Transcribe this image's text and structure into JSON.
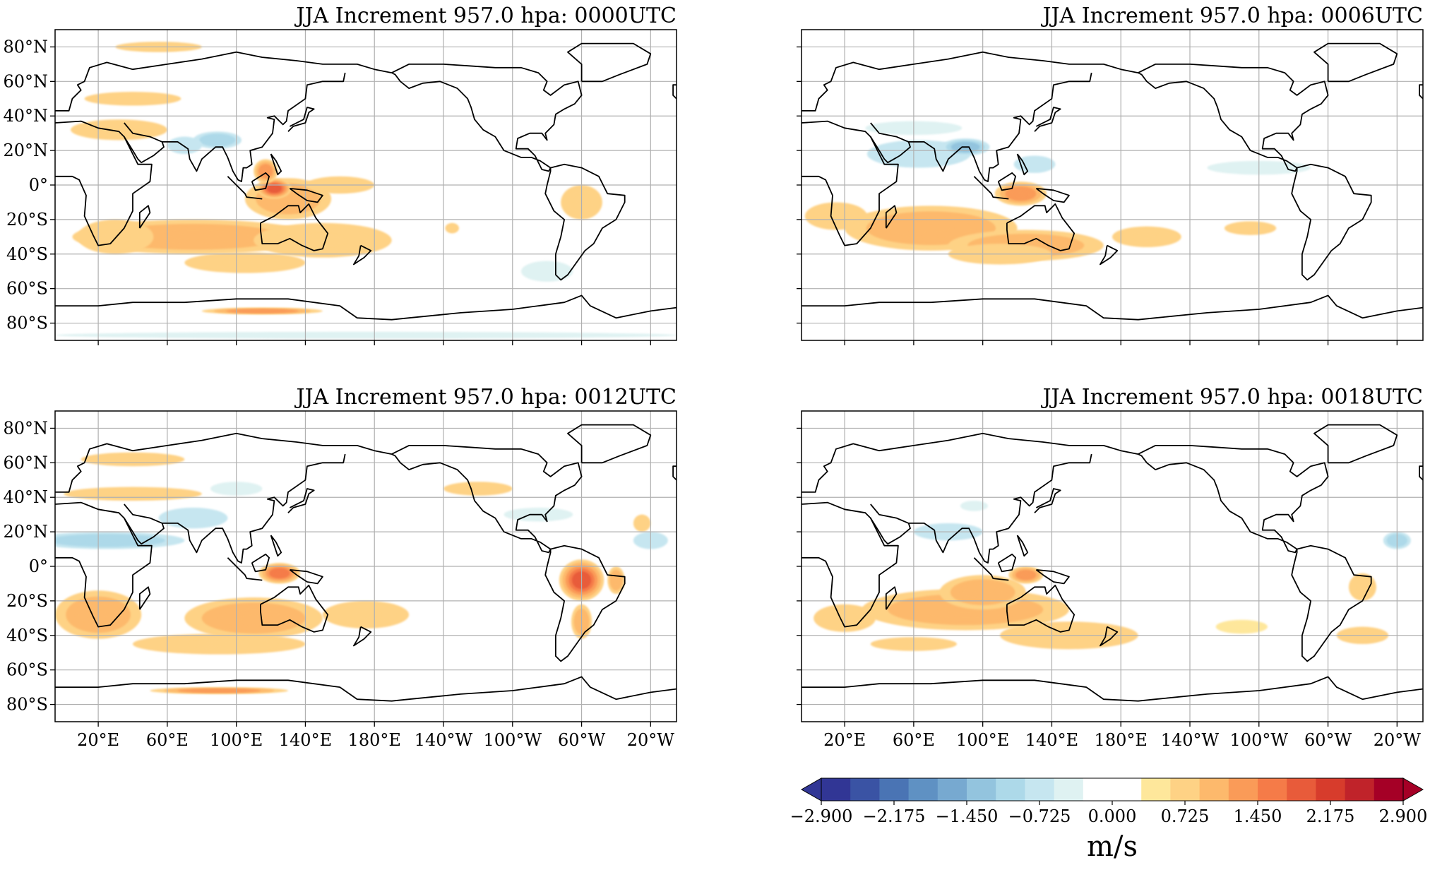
{
  "figure": {
    "panels": [
      {
        "title": "JJA Increment 957.0 hpa: 0000UTC",
        "show_ylabels": true,
        "show_xlabels": false
      },
      {
        "title": "JJA Increment 957.0 hpa: 0006UTC",
        "show_ylabels": false,
        "show_xlabels": false
      },
      {
        "title": "JJA Increment 957.0 hpa: 0012UTC",
        "show_ylabels": true,
        "show_xlabels": true
      },
      {
        "title": "JJA Increment 957.0 hpa: 0018UTC",
        "show_ylabels": false,
        "show_xlabels": true
      }
    ],
    "lat_ticks": [
      {
        "value": 80,
        "label": "80°N"
      },
      {
        "value": 60,
        "label": "60°N"
      },
      {
        "value": 40,
        "label": "40°N"
      },
      {
        "value": 20,
        "label": "20°N"
      },
      {
        "value": 0,
        "label": "0°"
      },
      {
        "value": -20,
        "label": "20°S"
      },
      {
        "value": -40,
        "label": "40°S"
      },
      {
        "value": -60,
        "label": "60°S"
      },
      {
        "value": -80,
        "label": "80°S"
      }
    ],
    "lon_ticks": [
      {
        "value": 20,
        "label": "20°E"
      },
      {
        "value": 60,
        "label": "60°E"
      },
      {
        "value": 100,
        "label": "100°E"
      },
      {
        "value": 140,
        "label": "140°E"
      },
      {
        "value": 180,
        "label": "180°E"
      },
      {
        "value": 220,
        "label": "140°W"
      },
      {
        "value": 260,
        "label": "100°W"
      },
      {
        "value": 300,
        "label": "60°W"
      },
      {
        "value": 340,
        "label": "20°W"
      }
    ],
    "lon_range": [
      -5,
      355
    ],
    "lat_range": [
      -90,
      90
    ],
    "colorbar": {
      "unit_label": "m/s",
      "vmin": -2.9,
      "vmax": 2.9,
      "tick_values": [
        -2.9,
        -2.175,
        -1.45,
        -0.725,
        0.0,
        0.725,
        1.45,
        2.175,
        2.9
      ],
      "tick_labels": [
        "−2.900",
        "−2.175",
        "−1.450",
        "−0.725",
        "0.000",
        "0.725",
        "1.450",
        "2.175",
        "2.900"
      ],
      "colors": [
        "#313695",
        "#3a53a4",
        "#4a74b4",
        "#5f91c3",
        "#77a9d0",
        "#93c4de",
        "#add9e9",
        "#c6e6f0",
        "#dff2f2",
        "#ffffff",
        "#ffffff",
        "#fee79b",
        "#fed285",
        "#fdb96c",
        "#fa9b58",
        "#f57b48",
        "#e85b3a",
        "#d73c2c",
        "#c0232a",
        "#a50026"
      ],
      "under_color": "#313695",
      "over_color": "#a50026",
      "grid_color": "#b0b0b0",
      "coast_color": "#000000"
    }
  },
  "chart_data": {
    "type": "heatmap",
    "variable_unit": "m/s",
    "panels": [
      {
        "title": "JJA Increment 957.0 hpa: 0000UTC",
        "blobs": [
          {
            "lon": 75,
            "lat": -30,
            "rx": 70,
            "ry": 10,
            "v": 0.9
          },
          {
            "lon": 30,
            "lat": -30,
            "rx": 22,
            "ry": 10,
            "v": 0.8
          },
          {
            "lon": 150,
            "lat": -32,
            "rx": 40,
            "ry": 10,
            "v": 0.8
          },
          {
            "lon": 105,
            "lat": -45,
            "rx": 35,
            "ry": 6,
            "v": 0.7
          },
          {
            "lon": 130,
            "lat": -8,
            "rx": 25,
            "ry": 12,
            "v": 1.0
          },
          {
            "lon": 122,
            "lat": -2,
            "rx": 10,
            "ry": 6,
            "v": 1.8
          },
          {
            "lon": 117,
            "lat": 8,
            "rx": 7,
            "ry": 7,
            "v": 1.3
          },
          {
            "lon": 160,
            "lat": 0,
            "rx": 20,
            "ry": 5,
            "v": 0.8
          },
          {
            "lon": 300,
            "lat": -10,
            "rx": 12,
            "ry": 10,
            "v": 0.8
          },
          {
            "lon": 115,
            "lat": -73,
            "rx": 35,
            "ry": 2,
            "v": 1.2
          },
          {
            "lon": 32,
            "lat": 32,
            "rx": 28,
            "ry": 6,
            "v": 0.8
          },
          {
            "lon": 40,
            "lat": 50,
            "rx": 28,
            "ry": 4,
            "v": 0.7
          },
          {
            "lon": 55,
            "lat": 80,
            "rx": 25,
            "ry": 3,
            "v": 0.7
          },
          {
            "lon": 225,
            "lat": -25,
            "rx": 4,
            "ry": 3,
            "v": 0.8
          },
          {
            "lon": 89,
            "lat": 26,
            "rx": 14,
            "ry": 5,
            "v": -1.1
          },
          {
            "lon": 70,
            "lat": 23,
            "rx": 10,
            "ry": 5,
            "v": -0.6
          },
          {
            "lon": 280,
            "lat": -50,
            "rx": 15,
            "ry": 6,
            "v": -0.5
          },
          {
            "lon": 175,
            "lat": -87,
            "rx": 180,
            "ry": 2,
            "v": -0.4
          }
        ]
      },
      {
        "title": "JJA Increment 957.0 hpa: 0006UTC",
        "blobs": [
          {
            "lon": 70,
            "lat": -25,
            "rx": 50,
            "ry": 13,
            "v": 1.0
          },
          {
            "lon": 15,
            "lat": -18,
            "rx": 18,
            "ry": 8,
            "v": 0.8
          },
          {
            "lon": 125,
            "lat": -35,
            "rx": 45,
            "ry": 9,
            "v": 0.9
          },
          {
            "lon": 122,
            "lat": -5,
            "rx": 15,
            "ry": 7,
            "v": 1.4
          },
          {
            "lon": 110,
            "lat": -40,
            "rx": 30,
            "ry": 6,
            "v": 0.6
          },
          {
            "lon": 195,
            "lat": -30,
            "rx": 20,
            "ry": 6,
            "v": 0.6
          },
          {
            "lon": 255,
            "lat": -25,
            "rx": 15,
            "ry": 4,
            "v": 0.6
          },
          {
            "lon": 63,
            "lat": 18,
            "rx": 30,
            "ry": 8,
            "v": -0.7
          },
          {
            "lon": 90,
            "lat": 22,
            "rx": 14,
            "ry": 5,
            "v": -1.3
          },
          {
            "lon": 130,
            "lat": 12,
            "rx": 12,
            "ry": 5,
            "v": -0.7
          },
          {
            "lon": 60,
            "lat": 33,
            "rx": 28,
            "ry": 4,
            "v": -0.5
          },
          {
            "lon": 260,
            "lat": 10,
            "rx": 30,
            "ry": 4,
            "v": -0.4
          }
        ]
      },
      {
        "title": "JJA Increment 957.0 hpa: 0012UTC",
        "blobs": [
          {
            "lon": 20,
            "lat": -28,
            "rx": 25,
            "ry": 14,
            "v": 0.9
          },
          {
            "lon": 110,
            "lat": -30,
            "rx": 40,
            "ry": 12,
            "v": 0.9
          },
          {
            "lon": 175,
            "lat": -28,
            "rx": 25,
            "ry": 8,
            "v": 0.7
          },
          {
            "lon": 90,
            "lat": -45,
            "rx": 50,
            "ry": 6,
            "v": 0.6
          },
          {
            "lon": 125,
            "lat": -4,
            "rx": 12,
            "ry": 6,
            "v": 1.6
          },
          {
            "lon": 300,
            "lat": -8,
            "rx": 13,
            "ry": 12,
            "v": 1.8
          },
          {
            "lon": 300,
            "lat": -32,
            "rx": 6,
            "ry": 10,
            "v": 1.0
          },
          {
            "lon": 320,
            "lat": -8,
            "rx": 5,
            "ry": 8,
            "v": 1.0
          },
          {
            "lon": 40,
            "lat": 42,
            "rx": 40,
            "ry": 4,
            "v": 0.6
          },
          {
            "lon": 40,
            "lat": 62,
            "rx": 30,
            "ry": 4,
            "v": 0.6
          },
          {
            "lon": 240,
            "lat": 45,
            "rx": 20,
            "ry": 4,
            "v": 0.6
          },
          {
            "lon": 335,
            "lat": 25,
            "rx": 5,
            "ry": 5,
            "v": 0.8
          },
          {
            "lon": 90,
            "lat": -72,
            "rx": 40,
            "ry": 2,
            "v": 1.2
          },
          {
            "lon": 25,
            "lat": 15,
            "rx": 45,
            "ry": 5,
            "v": -0.9
          },
          {
            "lon": 75,
            "lat": 28,
            "rx": 20,
            "ry": 6,
            "v": -0.7
          },
          {
            "lon": 100,
            "lat": 45,
            "rx": 15,
            "ry": 4,
            "v": -0.4
          },
          {
            "lon": 340,
            "lat": 15,
            "rx": 10,
            "ry": 5,
            "v": -0.8
          },
          {
            "lon": 275,
            "lat": 30,
            "rx": 20,
            "ry": 4,
            "v": -0.5
          }
        ]
      },
      {
        "title": "JJA Increment 957.0 hpa: 0018UTC",
        "blobs": [
          {
            "lon": 90,
            "lat": -25,
            "rx": 60,
            "ry": 12,
            "v": 0.9
          },
          {
            "lon": 20,
            "lat": -30,
            "rx": 18,
            "ry": 8,
            "v": 0.7
          },
          {
            "lon": 150,
            "lat": -40,
            "rx": 40,
            "ry": 8,
            "v": 0.7
          },
          {
            "lon": 100,
            "lat": -15,
            "rx": 25,
            "ry": 10,
            "v": 0.9
          },
          {
            "lon": 125,
            "lat": -5,
            "rx": 10,
            "ry": 5,
            "v": 1.2
          },
          {
            "lon": 320,
            "lat": -12,
            "rx": 8,
            "ry": 8,
            "v": 0.8
          },
          {
            "lon": 320,
            "lat": -40,
            "rx": 15,
            "ry": 5,
            "v": 0.7
          },
          {
            "lon": 60,
            "lat": -45,
            "rx": 25,
            "ry": 4,
            "v": 0.6
          },
          {
            "lon": 250,
            "lat": -35,
            "rx": 15,
            "ry": 4,
            "v": 0.5
          },
          {
            "lon": 80,
            "lat": 20,
            "rx": 20,
            "ry": 5,
            "v": -0.6
          },
          {
            "lon": 340,
            "lat": 15,
            "rx": 8,
            "ry": 5,
            "v": -0.9
          },
          {
            "lon": 95,
            "lat": 35,
            "rx": 8,
            "ry": 3,
            "v": -0.5
          }
        ]
      }
    ]
  }
}
